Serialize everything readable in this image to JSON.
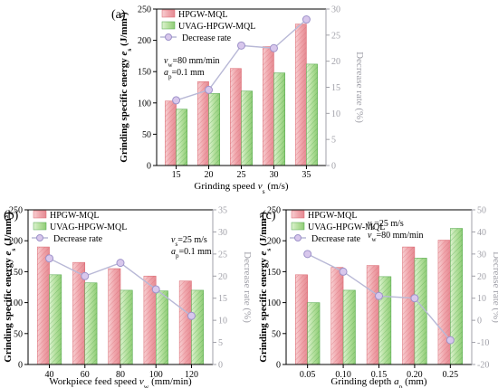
{
  "chart_data": [
    {
      "panel_label": "(a)",
      "type": "bar",
      "categories": [
        "15",
        "20",
        "25",
        "30",
        "35"
      ],
      "series": [
        {
          "name": "HPGW-MQL",
          "values": [
            103,
            134,
            155,
            190,
            226
          ]
        },
        {
          "name": "UVAG-HPGW-MQL",
          "values": [
            90,
            115,
            119,
            148,
            162
          ]
        },
        {
          "name": "Decrease rate",
          "axis": "right",
          "values": [
            12.5,
            14.5,
            23,
            22.5,
            28
          ]
        }
      ],
      "xlabel": "Grinding speed v_s (m/s)",
      "ylabel": "Grinding specific energy e_s (J/mm³)",
      "y2label": "Decrease rate (%)",
      "ylim": [
        0,
        250
      ],
      "yticks": [
        0,
        50,
        100,
        150,
        200,
        250
      ],
      "y2lim": [
        0,
        30
      ],
      "y2ticks": [
        0,
        5,
        10,
        15,
        20,
        25,
        30
      ],
      "annotation": [
        "v_w=80 mm/min",
        "a_p=0.1 mm"
      ],
      "legend": "top-left",
      "grid": false
    },
    {
      "panel_label": "(b)",
      "type": "bar",
      "categories": [
        "40",
        "60",
        "80",
        "100",
        "120"
      ],
      "series": [
        {
          "name": "HPGW-MQL",
          "values": [
            190,
            165,
            155,
            143,
            135
          ]
        },
        {
          "name": "UVAG-HPGW-MQL",
          "values": [
            145,
            132,
            120,
            119,
            120
          ]
        },
        {
          "name": "Decrease rate",
          "axis": "right",
          "values": [
            24,
            20,
            23,
            17,
            11
          ]
        }
      ],
      "xlabel": "Workpiece feed speed v_w (mm/min)",
      "ylabel": "Grinding specific energy e_s (J/mm³)",
      "y2label": "Decrease rate (%)",
      "ylim": [
        0,
        250
      ],
      "yticks": [
        0,
        50,
        100,
        150,
        200,
        250
      ],
      "y2lim": [
        0,
        35
      ],
      "y2ticks": [
        0,
        5,
        10,
        15,
        20,
        25,
        30,
        35
      ],
      "annotation": [
        "v_s=25 m/s",
        "a_p=0.1 mm"
      ],
      "legend": "top-left",
      "grid": false
    },
    {
      "panel_label": "(c)",
      "type": "bar",
      "categories": [
        "0.05",
        "0.10",
        "0.15",
        "0.20",
        "0.25"
      ],
      "series": [
        {
          "name": "HPGW-MQL",
          "values": [
            145,
            157,
            160,
            190,
            201
          ]
        },
        {
          "name": "UVAG-HPGW-MQL",
          "values": [
            100,
            120,
            142,
            172,
            220
          ]
        },
        {
          "name": "Decrease rate",
          "axis": "right",
          "values": [
            30,
            22,
            11,
            10,
            -9
          ]
        }
      ],
      "xlabel": "Grinding depth a_p (mm)",
      "ylabel": "Grinding specific energy e_s (J/mm³)",
      "y2label": "Decrease rate (%)",
      "ylim": [
        0,
        250
      ],
      "yticks": [
        0,
        50,
        100,
        150,
        200,
        250
      ],
      "y2lim": [
        -20,
        50
      ],
      "y2ticks": [
        -20,
        -10,
        0,
        10,
        20,
        30,
        40,
        50
      ],
      "annotation": [
        "v_s=25 m/s",
        "v_w=80 mm/min"
      ],
      "legend": "top-left",
      "grid": false
    }
  ],
  "colors": {
    "hpgw_fill": "#f4b9bd",
    "hpgw_stripe": "#d9636c",
    "uvag_fill": "#c4e7b4",
    "uvag_stripe": "#4fa648",
    "decrease_line": "#b8b8d6",
    "decrease_marker_fill": "#d8c7ec",
    "decrease_marker_stroke": "#9d92c9",
    "right_axis": "#a0a0a8",
    "axis": "#000000"
  }
}
